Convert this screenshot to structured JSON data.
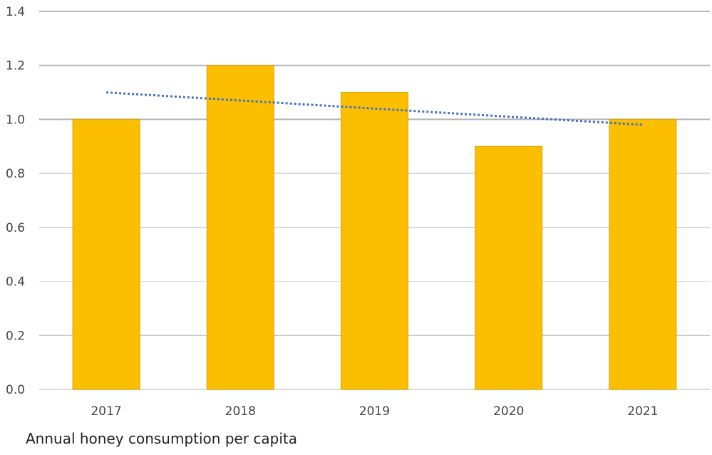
{
  "chart_data": {
    "type": "bar",
    "categories": [
      "2017",
      "2018",
      "2019",
      "2020",
      "2021"
    ],
    "values": [
      1.0,
      1.2,
      1.1,
      0.9,
      1.0
    ],
    "ylim": [
      0,
      1.4
    ],
    "yticks": [
      "0.0",
      "0.2",
      "0.4",
      "0.6",
      "0.8",
      "1.0",
      "1.2",
      "1.4"
    ],
    "ytick_values": [
      0,
      0.2,
      0.4,
      0.6,
      0.8,
      1.0,
      1.2,
      1.4
    ],
    "grid": true,
    "trendline": {
      "type": "linear",
      "style": "dotted",
      "start": 1.1,
      "end": 0.98
    },
    "colors": {
      "bar": "#FBBF00",
      "bar_edge": "#D9A300",
      "trendline": "#4472C4",
      "grid": "#BDBDBD"
    }
  },
  "caption": "Annual honey consumption per capita"
}
